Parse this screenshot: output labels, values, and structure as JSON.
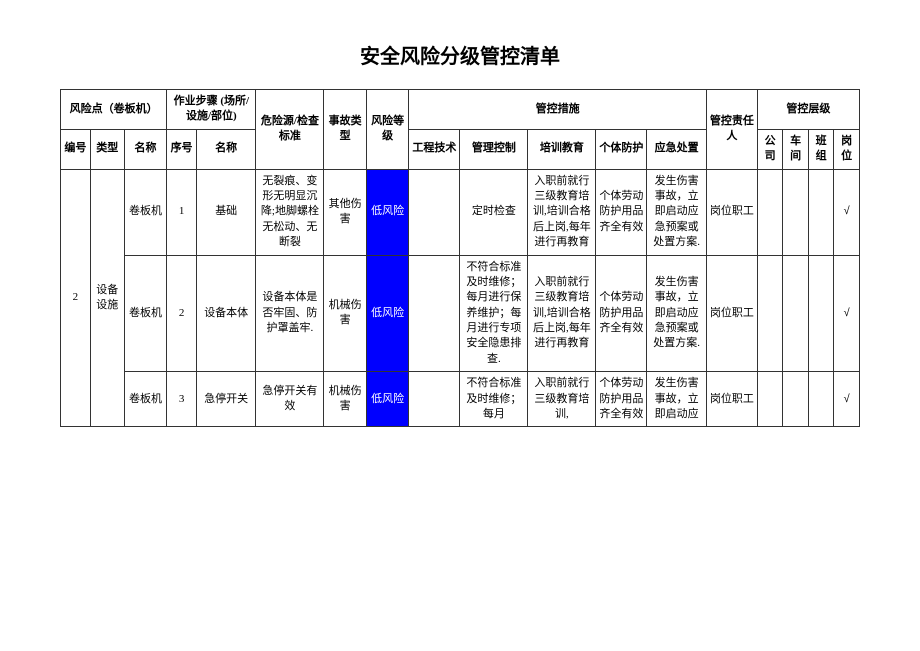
{
  "title": "安全风险分级管控清单",
  "headers": {
    "risk_point": "风险点（卷板机）",
    "steps": "作业步骤\n(场所/设施/部位)",
    "hazard": "危险源/检查标准",
    "accident_type": "事故类型",
    "risk_level": "风险等级",
    "control_measures": "管控措施",
    "responsible": "管控责任人",
    "control_level": "管控层级",
    "no": "编号",
    "category": "类型",
    "name": "名称",
    "seq": "序号",
    "step_name": "名称",
    "eng": "工程技术",
    "mgmt": "管理控制",
    "train": "培训教育",
    "ppe": "个体防护",
    "emer": "应急处置",
    "lv_company": "公司",
    "lv_workshop": "车间",
    "lv_team": "班组",
    "lv_post": "岗位"
  },
  "main": {
    "no": "2",
    "category": "设备设施"
  },
  "rows": [
    {
      "name": "卷板机",
      "seq": "1",
      "step": "基础",
      "hazard": "无裂痕、变形无明显沉降;地脚螺栓无松动、无断裂",
      "accident": "其他伤害",
      "level": "低风险",
      "eng": "",
      "mgmt": "定时检查",
      "train": "入职前就行三级教育培训,培训合格后上岗,每年进行再教育",
      "ppe": "个体劳动防护用品齐全有效",
      "emer": "发生伤害事故，立即启动应急预案或处置方案.",
      "resp": "岗位职工",
      "lv_company": "",
      "lv_workshop": "",
      "lv_team": "",
      "lv_post": "√"
    },
    {
      "name": "卷板机",
      "seq": "2",
      "step": "设备本体",
      "hazard": "设备本体是否牢固、防护罩盖牢.",
      "accident": "机械伤害",
      "level": "低风险",
      "eng": "",
      "mgmt": "不符合标准及时维修；每月进行保养维护；每月进行专项安全隐患排查.",
      "train": "入职前就行三级教育培训,培训合格后上岗,每年进行再教育",
      "ppe": "个体劳动防护用品齐全有效",
      "emer": "发生伤害事故，立即启动应急预案或处置方案.",
      "resp": "岗位职工",
      "lv_company": "",
      "lv_workshop": "",
      "lv_team": "",
      "lv_post": "√"
    },
    {
      "name": "卷板机",
      "seq": "3",
      "step": "急停开关",
      "hazard": "急停开关有效",
      "accident": "机械伤害",
      "level": "低风险",
      "eng": "",
      "mgmt": "不符合标准及时维修；每月",
      "train": "入职前就行三级教育培训,",
      "ppe": "个体劳动防护用品齐全有效",
      "emer": "发生伤害事故，立即启动应",
      "resp": "岗位职工",
      "lv_company": "",
      "lv_workshop": "",
      "lv_team": "",
      "lv_post": "√"
    }
  ],
  "style": {
    "risk_low_bg": "#0000ff",
    "risk_low_fg": "#ffffff",
    "border_color": "#333333",
    "font_size_body": 11,
    "font_size_title": 20
  }
}
